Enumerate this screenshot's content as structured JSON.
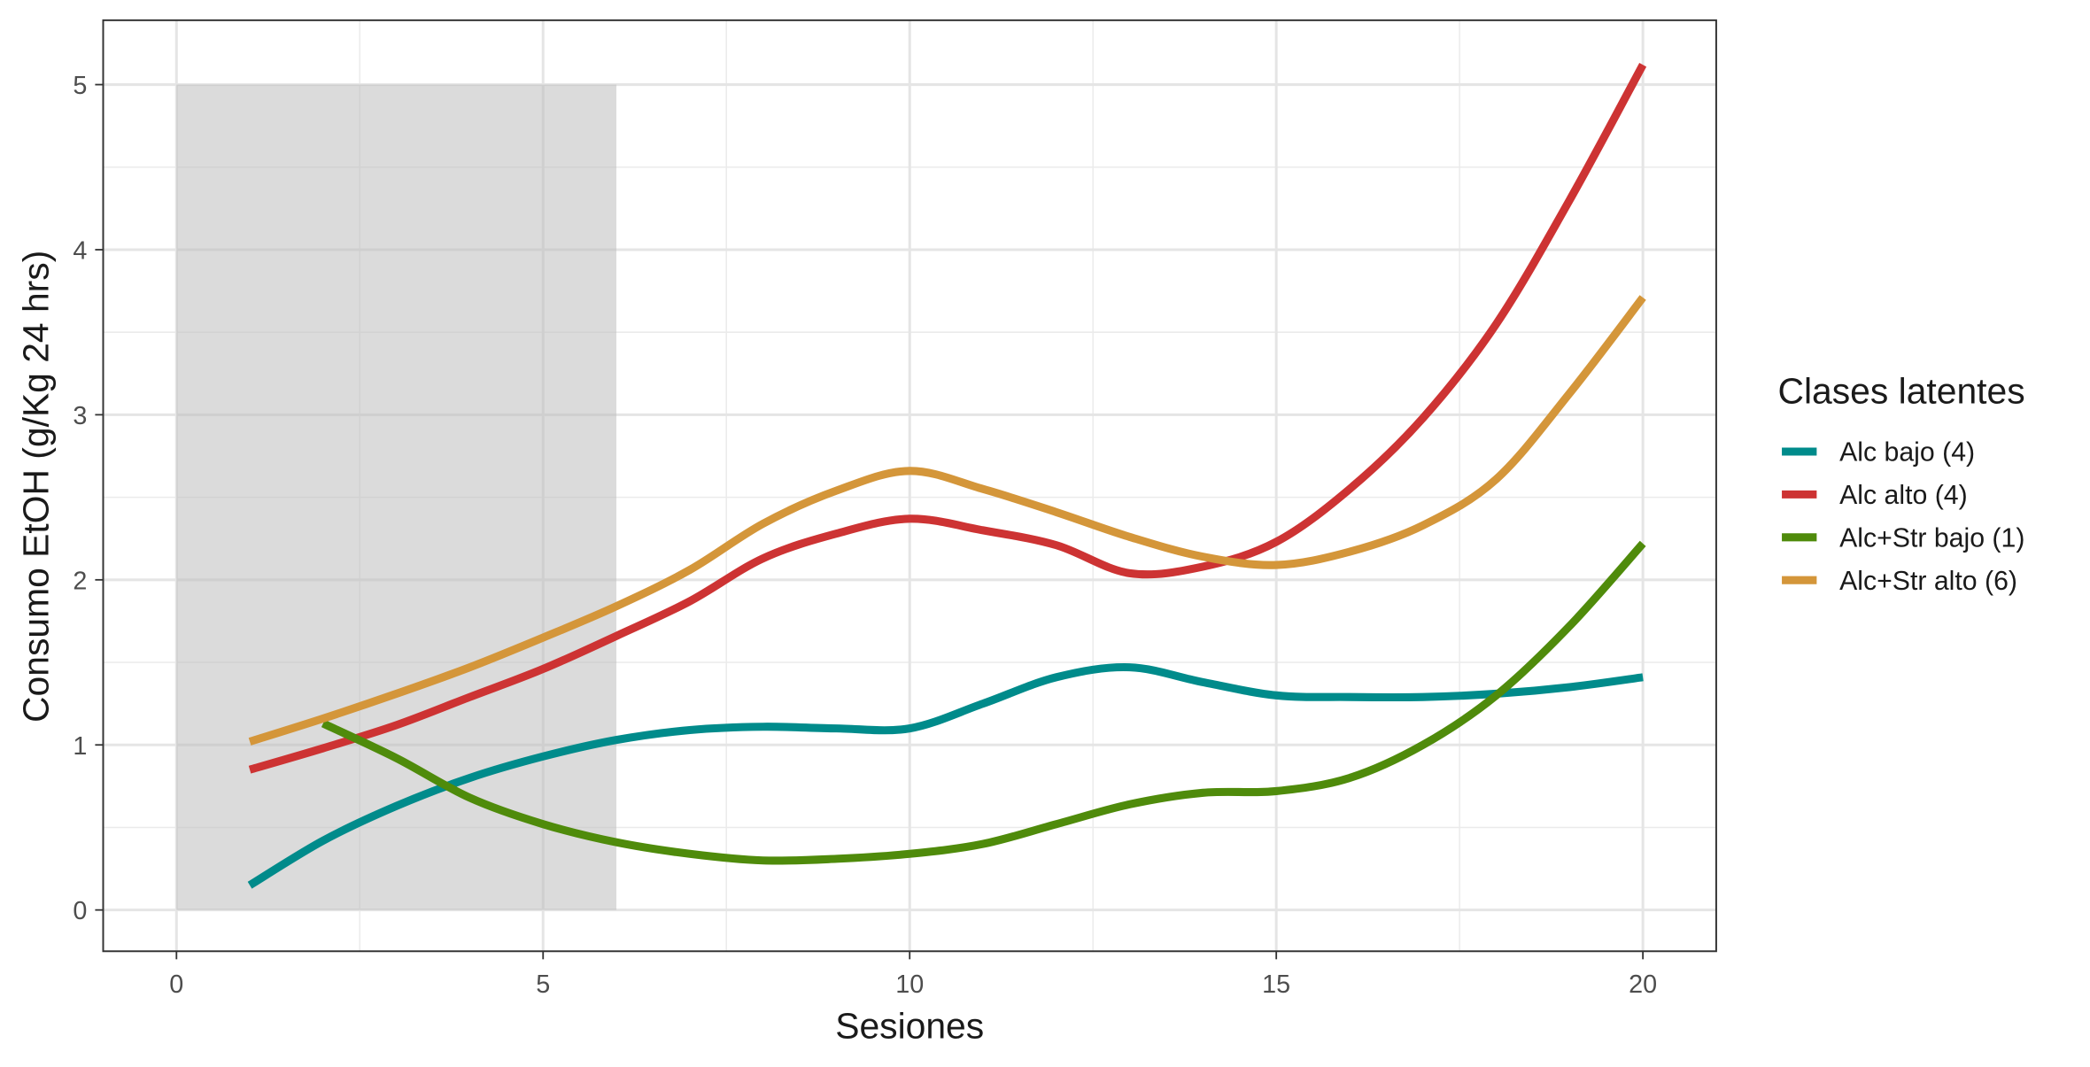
{
  "chart_data": {
    "type": "line",
    "x_label": "Sesiones",
    "y_label": "Consumo EtOH (g/Kg 24 hrs)",
    "legend_title": "Clases latentes",
    "legend_position": "right",
    "x": [
      1,
      2,
      3,
      4,
      5,
      6,
      7,
      8,
      9,
      10,
      11,
      12,
      13,
      14,
      15,
      16,
      17,
      18,
      19,
      20
    ],
    "series": [
      {
        "name": "Alc bajo (4)",
        "color": "#008b8b",
        "values": [
          0.15,
          0.42,
          0.63,
          0.8,
          0.93,
          1.03,
          1.09,
          1.11,
          1.1,
          1.1,
          1.25,
          1.41,
          1.47,
          1.38,
          1.3,
          1.29,
          1.29,
          1.31,
          1.35,
          1.41
        ]
      },
      {
        "name": "Alc alto (4)",
        "color": "#cd3333",
        "values": [
          0.85,
          0.98,
          1.12,
          1.29,
          1.46,
          1.66,
          1.87,
          2.13,
          2.28,
          2.37,
          2.3,
          2.21,
          2.04,
          2.08,
          2.23,
          2.55,
          2.98,
          3.55,
          4.3,
          5.12
        ]
      },
      {
        "name": "Alc+Str bajo (1)",
        "color": "#4f8b0b",
        "values": [
          null,
          1.13,
          0.92,
          0.68,
          0.52,
          0.41,
          0.34,
          0.3,
          0.31,
          0.34,
          0.4,
          0.52,
          0.64,
          0.71,
          0.72,
          0.8,
          1.0,
          1.3,
          1.72,
          2.22
        ]
      },
      {
        "name": "Alc+Str alto (6)",
        "color": "#d4963a",
        "values": [
          1.02,
          1.16,
          1.31,
          1.47,
          1.65,
          1.84,
          2.06,
          2.34,
          2.54,
          2.66,
          2.55,
          2.41,
          2.26,
          2.14,
          2.09,
          2.17,
          2.33,
          2.61,
          3.13,
          3.71
        ]
      }
    ],
    "shaded_region": {
      "x": [
        0,
        6
      ],
      "y": [
        0,
        5
      ],
      "color": "#bebebe"
    },
    "xlim": [
      -1,
      21
    ],
    "xticks": [
      0,
      5,
      10,
      15,
      20
    ],
    "ylim": [
      -0.25,
      5.39
    ],
    "yticks": [
      0,
      1,
      2,
      3,
      4,
      5
    ],
    "grid": true,
    "minor_grid": true
  }
}
